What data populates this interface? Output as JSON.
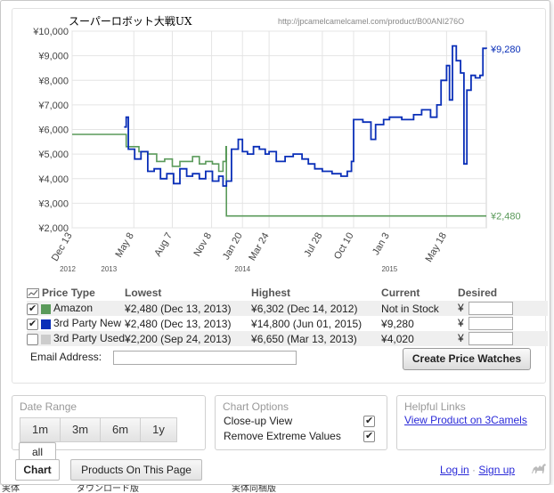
{
  "chart_title": "スーパーロボット大戦UX",
  "chart_url": "http://jpcamelcamelcamel.com/product/B00ANI276O",
  "current_new_label": "¥9,280",
  "current_amazon_label": "¥2,480",
  "colors": {
    "amazon": "#5a9a5a",
    "third_new": "#0a2fb8",
    "third_used": "#cccccc",
    "grid": "#e4e4e4",
    "link": "#2a2ad8"
  },
  "chart_data": {
    "type": "line",
    "title": "スーパーロボット大戦UX",
    "xlabel": "",
    "ylabel": "",
    "ylim": [
      2000,
      10000
    ],
    "y_ticks": [
      "¥2,000",
      "¥3,000",
      "¥4,000",
      "¥5,000",
      "¥6,000",
      "¥7,000",
      "¥8,000",
      "¥9,000",
      "¥10,000"
    ],
    "y_tick_values": [
      2000,
      3000,
      4000,
      5000,
      6000,
      7000,
      8000,
      9000,
      10000
    ],
    "x_ticks": [
      {
        "label": "Dec 13",
        "date": "2012-12-13"
      },
      {
        "label": "May 8",
        "date": "2013-05-08"
      },
      {
        "label": "Aug 7",
        "date": "2013-08-07"
      },
      {
        "label": "Nov 8",
        "date": "2013-11-08"
      },
      {
        "label": "Jan 20",
        "date": "2014-01-20"
      },
      {
        "label": "Mar 24",
        "date": "2014-03-24"
      },
      {
        "label": "Jul 28",
        "date": "2014-07-28"
      },
      {
        "label": "Oct 10",
        "date": "2014-10-10"
      },
      {
        "label": "Jan 3",
        "date": "2015-01-03"
      },
      {
        "label": "May 18",
        "date": "2015-05-18"
      }
    ],
    "x_range": [
      "2012-12-13",
      "2015-08-20"
    ],
    "year_labels": [
      {
        "label": "2012",
        "date": "2012-12-13"
      },
      {
        "label": "2013",
        "date": "2013-03-10"
      },
      {
        "label": "2014",
        "date": "2014-01-20"
      },
      {
        "label": "2015",
        "date": "2015-01-03"
      }
    ],
    "grid": true,
    "series": [
      {
        "name": "Amazon",
        "color": "#5a9a5a",
        "points": [
          [
            "2012-12-13",
            5800
          ],
          [
            "2013-04-15",
            5800
          ],
          [
            "2013-04-20",
            5300
          ],
          [
            "2013-05-15",
            5300
          ],
          [
            "2013-05-20",
            5100
          ],
          [
            "2013-06-10",
            5000
          ],
          [
            "2013-07-01",
            4700
          ],
          [
            "2013-07-20",
            4800
          ],
          [
            "2013-08-07",
            4500
          ],
          [
            "2013-08-25",
            4700
          ],
          [
            "2013-09-10",
            4700
          ],
          [
            "2013-09-24",
            4900
          ],
          [
            "2013-10-10",
            4600
          ],
          [
            "2013-10-25",
            4700
          ],
          [
            "2013-11-10",
            4600
          ],
          [
            "2013-11-25",
            4300
          ],
          [
            "2013-12-05",
            4700
          ],
          [
            "2013-12-12",
            5300
          ],
          [
            "2013-12-13",
            2480
          ],
          [
            "2015-08-20",
            2480
          ]
        ]
      },
      {
        "name": "3rd Party New",
        "color": "#0a2fb8",
        "points": [
          [
            "2013-04-15",
            6100
          ],
          [
            "2013-04-20",
            6500
          ],
          [
            "2013-04-25",
            5200
          ],
          [
            "2013-05-10",
            4800
          ],
          [
            "2013-05-25",
            5100
          ],
          [
            "2013-06-10",
            4300
          ],
          [
            "2013-06-25",
            4400
          ],
          [
            "2013-07-10",
            4000
          ],
          [
            "2013-07-25",
            4200
          ],
          [
            "2013-08-10",
            3800
          ],
          [
            "2013-08-25",
            4400
          ],
          [
            "2013-09-10",
            4100
          ],
          [
            "2013-09-24",
            4200
          ],
          [
            "2013-10-10",
            4000
          ],
          [
            "2013-10-25",
            4300
          ],
          [
            "2013-11-10",
            3900
          ],
          [
            "2013-11-25",
            4100
          ],
          [
            "2013-12-05",
            3700
          ],
          [
            "2013-12-13",
            3900
          ],
          [
            "2013-12-25",
            5200
          ],
          [
            "2014-01-10",
            5600
          ],
          [
            "2014-01-20",
            5100
          ],
          [
            "2014-02-01",
            5000
          ],
          [
            "2014-02-15",
            5300
          ],
          [
            "2014-03-01",
            5200
          ],
          [
            "2014-03-15",
            5000
          ],
          [
            "2014-03-24",
            5100
          ],
          [
            "2014-04-10",
            4700
          ],
          [
            "2014-05-01",
            4900
          ],
          [
            "2014-05-20",
            5000
          ],
          [
            "2014-06-10",
            4800
          ],
          [
            "2014-06-25",
            4600
          ],
          [
            "2014-07-10",
            4400
          ],
          [
            "2014-07-28",
            4300
          ],
          [
            "2014-08-20",
            4200
          ],
          [
            "2014-09-10",
            4100
          ],
          [
            "2014-09-25",
            4300
          ],
          [
            "2014-10-05",
            4700
          ],
          [
            "2014-10-10",
            6400
          ],
          [
            "2014-11-01",
            6300
          ],
          [
            "2014-11-20",
            5600
          ],
          [
            "2014-12-01",
            6200
          ],
          [
            "2014-12-20",
            6400
          ],
          [
            "2015-01-03",
            6500
          ],
          [
            "2015-02-01",
            6400
          ],
          [
            "2015-03-01",
            6600
          ],
          [
            "2015-03-20",
            6800
          ],
          [
            "2015-04-10",
            6500
          ],
          [
            "2015-04-25",
            7000
          ],
          [
            "2015-05-05",
            8000
          ],
          [
            "2015-05-18",
            8600
          ],
          [
            "2015-05-25",
            7200
          ],
          [
            "2015-06-01",
            9400
          ],
          [
            "2015-06-10",
            8800
          ],
          [
            "2015-06-20",
            8300
          ],
          [
            "2015-06-28",
            4600
          ],
          [
            "2015-07-05",
            7600
          ],
          [
            "2015-07-15",
            8200
          ],
          [
            "2015-07-25",
            8100
          ],
          [
            "2015-08-05",
            8200
          ],
          [
            "2015-08-12",
            9300
          ],
          [
            "2015-08-20",
            9280
          ]
        ]
      }
    ]
  },
  "price_table": {
    "headers": {
      "price_type": "Price Type",
      "lowest": "Lowest",
      "highest": "Highest",
      "current": "Current",
      "desired": "Desired"
    },
    "currency_symbol": "¥",
    "rows": [
      {
        "name": "Amazon",
        "color": "#5a9a5a",
        "checked": true,
        "lowest": "¥2,480 (Dec 13, 2013)",
        "highest": "¥6,302 (Dec 14, 2012)",
        "current": "Not in Stock"
      },
      {
        "name": "3rd Party New",
        "color": "#0a2fb8",
        "checked": true,
        "lowest": "¥2,480 (Dec 13, 2013)",
        "highest": "¥14,800 (Jun 01, 2015)",
        "current": "¥9,280"
      },
      {
        "name": "3rd Party Used",
        "color": "#cccccc",
        "checked": false,
        "lowest": "¥2,200 (Sep 24, 2013)",
        "highest": "¥6,650 (Mar 13, 2013)",
        "current": "¥4,020"
      }
    ]
  },
  "email_label": "Email Address:",
  "create_button": "Create Price Watches",
  "date_range": {
    "title": "Date Range",
    "buttons": [
      "1m",
      "3m",
      "6m",
      "1y",
      "all"
    ]
  },
  "chart_options": {
    "title": "Chart Options",
    "closeup": "Close-up View",
    "remove_extreme": "Remove Extreme Values",
    "closeup_checked": true,
    "remove_extreme_checked": true
  },
  "helpful_links": {
    "title": "Helpful Links",
    "link": "View Product on 3Camels"
  },
  "tabs": {
    "chart": "Chart",
    "products": "Products On This Page"
  },
  "footer": {
    "login": "Log in",
    "separator": "·",
    "signup": "Sign up"
  },
  "background_text": [
    "実体",
    "ダウンロード版",
    "実体同梱版"
  ]
}
